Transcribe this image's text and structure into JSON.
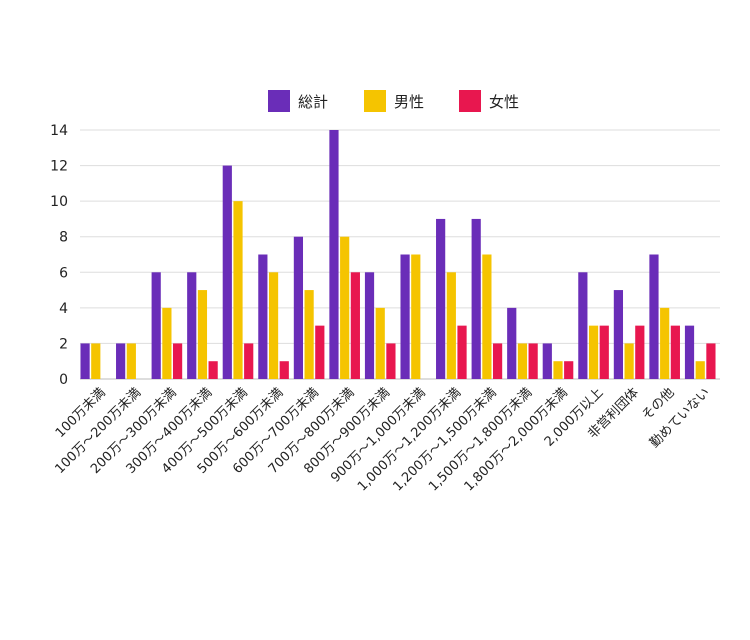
{
  "colors": {
    "総計": "#6a2db8",
    "男性": "#f5c400",
    "女性": "#e8174f"
  },
  "chart_data": {
    "type": "bar",
    "categories": [
      "100万未満",
      "100万〜200万未満",
      "200万〜300万未満",
      "300万〜400万未満",
      "400万〜500万未満",
      "500万〜600万未満",
      "600万〜700万未満",
      "700万〜800万未満",
      "800万〜900万未満",
      "900万〜1,000万未満",
      "1,000万〜1,200万未満",
      "1,200万〜1,500万未満",
      "1,500万〜1,800万未満",
      "1,800万〜2,000万未満",
      "2,000万以上",
      "非営利団体",
      "その他",
      "勤めていない"
    ],
    "series": [
      {
        "name": "総計",
        "values": [
          2,
          2,
          6,
          6,
          12,
          7,
          8,
          14,
          6,
          7,
          9,
          9,
          4,
          2,
          6,
          5,
          7,
          3
        ]
      },
      {
        "name": "男性",
        "values": [
          2,
          2,
          4,
          5,
          10,
          6,
          5,
          8,
          4,
          7,
          6,
          7,
          2,
          1,
          3,
          2,
          4,
          1
        ]
      },
      {
        "name": "女性",
        "values": [
          0,
          0,
          2,
          1,
          2,
          1,
          3,
          6,
          2,
          0,
          3,
          2,
          2,
          1,
          3,
          3,
          3,
          2
        ]
      }
    ],
    "ylim": [
      0,
      14
    ],
    "yticks": [
      0,
      2,
      4,
      6,
      8,
      10,
      12,
      14
    ],
    "legend": "top-center",
    "grid": true
  }
}
